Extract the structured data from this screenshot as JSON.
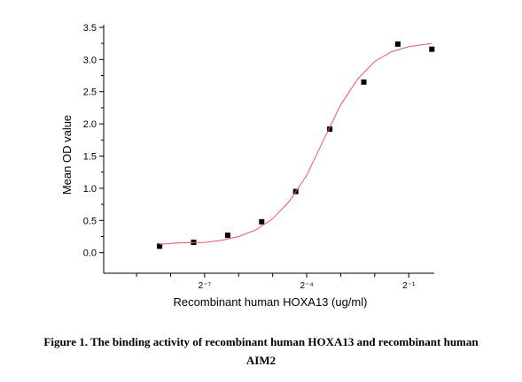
{
  "chart_data": {
    "type": "scatter",
    "x_label": "Recombinant human HOXA13 (ug/ml)",
    "y_label": "Mean OD value",
    "caption": "Figure 1. The binding activity of recombinant human HOXA13 and recombinant human AIM2",
    "xlog": true,
    "log_base": 2,
    "xlim": [
      0.001,
      0.84
    ],
    "ylim": [
      -0.32,
      3.54
    ],
    "xticks": [
      {
        "value": 0.0078125,
        "label": "2⁻⁷"
      },
      {
        "value": 0.0625,
        "label": "2⁻⁴"
      },
      {
        "value": 0.5,
        "label": "2⁻¹"
      }
    ],
    "xminorticks": [
      0.001953125,
      0.00390625,
      0.015625,
      0.03125,
      0.125,
      0.25
    ],
    "yticks": [
      {
        "value": 0,
        "label": "0.0"
      },
      {
        "value": 0.5,
        "label": "0.5"
      },
      {
        "value": 1,
        "label": "1.0"
      },
      {
        "value": 1.5,
        "label": "1.5"
      },
      {
        "value": 2,
        "label": "2.0"
      },
      {
        "value": 2.5,
        "label": "2.5"
      },
      {
        "value": 3,
        "label": "3.0"
      },
      {
        "value": 3.5,
        "label": "3.5"
      }
    ],
    "yminorticks": [
      0.25,
      0.75,
      1.25,
      1.75,
      2.25,
      2.75,
      3.25
    ],
    "series": [
      {
        "kind": "points",
        "color": "#000000",
        "x": [
          0.003125,
          0.00625,
          0.0125,
          0.025,
          0.05,
          0.1,
          0.2,
          0.4,
          0.8
        ],
        "values": [
          0.1,
          0.16,
          0.27,
          0.48,
          0.95,
          1.92,
          2.65,
          3.24,
          3.16
        ]
      },
      {
        "kind": "curve",
        "color": "#e8585a",
        "x": [
          0.003125,
          0.0045,
          0.0078,
          0.011,
          0.0156,
          0.022,
          0.031,
          0.044,
          0.0625,
          0.088,
          0.125,
          0.177,
          0.25,
          0.35,
          0.5,
          0.8
        ],
        "values": [
          0.13,
          0.15,
          0.16,
          0.19,
          0.25,
          0.35,
          0.52,
          0.8,
          1.2,
          1.75,
          2.3,
          2.7,
          2.97,
          3.12,
          3.2,
          3.25
        ]
      }
    ]
  }
}
